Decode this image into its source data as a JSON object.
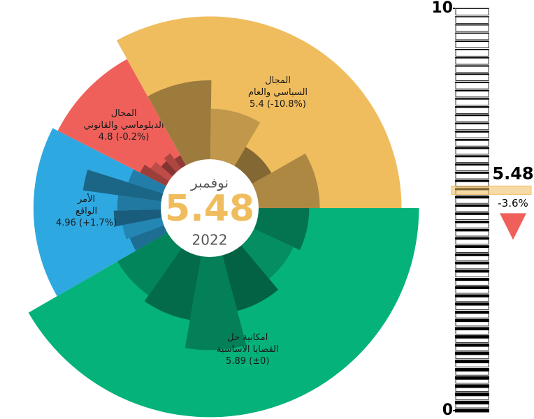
{
  "chart_data": {
    "type": "radial-pie",
    "center": {
      "month": "نوفمبر",
      "value": 5.48,
      "year": "2022"
    },
    "rlim": [
      0,
      6
    ],
    "series": [
      {
        "label_lines": [
          "امكانية حل",
          "القضايا الاساسية"
        ],
        "value": 5.89,
        "value_label": "5.89 (±0)",
        "weight": 150,
        "color": "#05b27a",
        "parts": [
          2.8,
          2.6,
          3.0,
          4.0,
          3.2,
          3.0
        ]
      },
      {
        "label_lines": [
          "الأمر",
          "الواقع"
        ],
        "value": 4.96,
        "value_label": "4.96 (+1.7%)",
        "weight": 57,
        "color": "#2ea8e0",
        "parts": [
          2.4,
          2.5,
          2.7,
          2.6,
          3.6,
          2.4
        ]
      },
      {
        "label_lines": [
          "المجال",
          "الدبلوماسي والقانوني"
        ],
        "value": 4.8,
        "value_label": "4.8 (-0.2%)",
        "weight": 34,
        "color": "#f0605a",
        "parts": [
          2.2,
          2.0,
          1.8,
          1.9,
          1.7
        ]
      },
      {
        "label_lines": [
          "المجال",
          "السياسي والعام"
        ],
        "value": 5.4,
        "value_label": "5.4 (-10.8%)",
        "weight": 119,
        "color": "#f0bd5e",
        "parts": [
          3.6,
          2.8,
          2.0,
          3.1
        ]
      }
    ],
    "gauge": {
      "ylim": [
        0,
        10
      ],
      "yticks": [
        0,
        10
      ],
      "change_label": "-3.6%",
      "band_color": "#f0bd5e",
      "down_color": "#f0605a"
    }
  }
}
